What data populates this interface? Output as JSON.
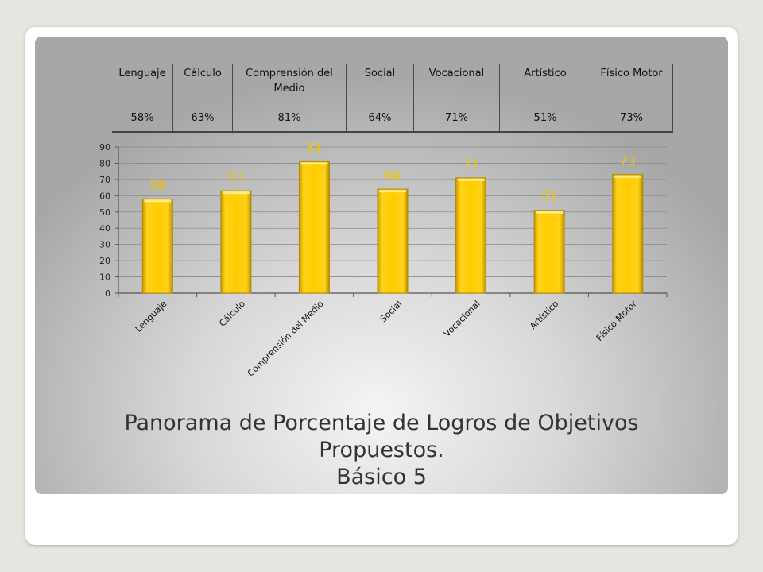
{
  "table": {
    "headers": [
      "Lenguaje",
      "Cálculo",
      "Comprensión del Medio",
      "Social",
      "Vocacional",
      "Artístico",
      "Físico Motor"
    ],
    "values": [
      "58%",
      "63%",
      "81%",
      "64%",
      "71%",
      "51%",
      "73%"
    ]
  },
  "caption": {
    "line1": "Panorama de Porcentaje de Logros de Objetivos",
    "line2": "Propuestos.",
    "line3": "Básico 5"
  },
  "colors": {
    "bar": "#ffcc00",
    "bar_edge": "#b08800",
    "data_label": "#f0c400"
  },
  "chart_data": {
    "type": "bar",
    "categories": [
      "Lenguaje",
      "Cálculo",
      "Comprensión del Medio",
      "Social",
      "Vocacional",
      "Artístico",
      "Físico Motor"
    ],
    "values": [
      58,
      63,
      81,
      64,
      71,
      51,
      73
    ],
    "data_labels": [
      "58",
      "63",
      "81",
      "64",
      "71",
      "51",
      "73"
    ],
    "ylim": [
      0,
      90
    ],
    "yticks": [
      0,
      10,
      20,
      30,
      40,
      50,
      60,
      70,
      80,
      90
    ],
    "grid": true,
    "legend": "none"
  }
}
